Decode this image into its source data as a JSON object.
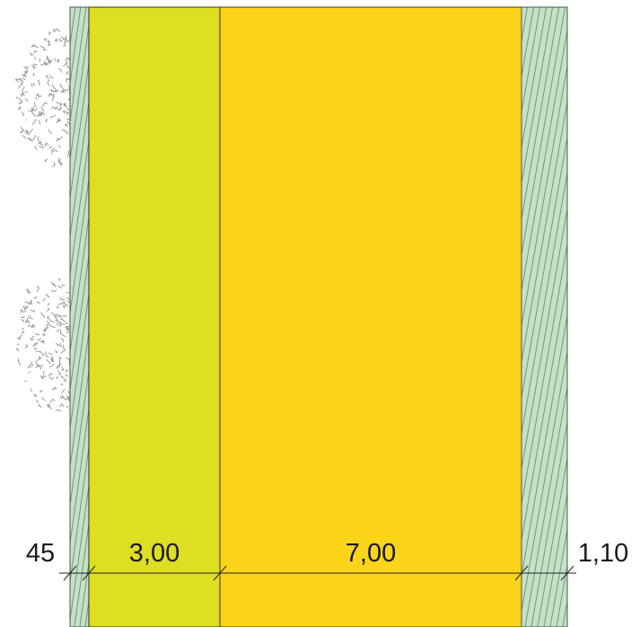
{
  "dimensions": [
    "45",
    "3,00",
    "7,00",
    "1,10"
  ]
}
